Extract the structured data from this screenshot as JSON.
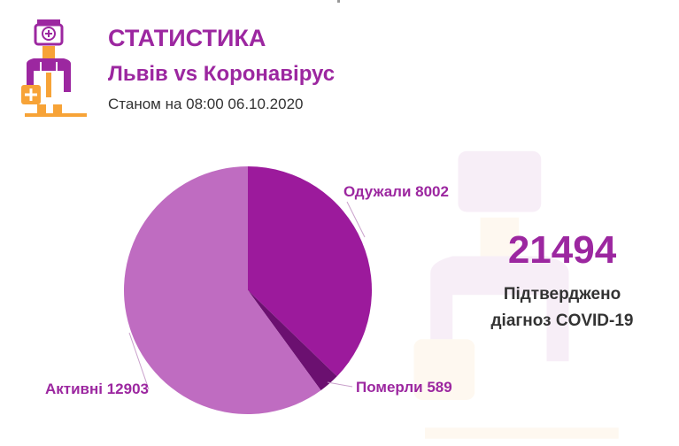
{
  "header": {
    "title": "СТАТИСТИКА",
    "subtitle": "Львів vs Коронавірус",
    "date_text": "Станом на 08:00 06.10.2020"
  },
  "logo": {
    "icon": "doctor-icon",
    "accent": "#f7a337",
    "brand": "#9c27a0"
  },
  "stat": {
    "value": "21494",
    "label_line1": "Підтверджено",
    "label_line2": "діагноз COVID-19"
  },
  "chart_data": {
    "type": "pie",
    "slices": [
      {
        "label": "Одужали",
        "value": 8002,
        "color": "#9c1a9c",
        "text": "Одужали 8002"
      },
      {
        "label": "Померли",
        "value": 589,
        "color": "#6b1070",
        "text": "Померли 589"
      },
      {
        "label": "Активні",
        "value": 12903,
        "color": "#bf6cc1",
        "text": "Активні 12903"
      }
    ],
    "start_angle": "top",
    "direction": "clockwise",
    "label_color": "#9c27a0"
  }
}
